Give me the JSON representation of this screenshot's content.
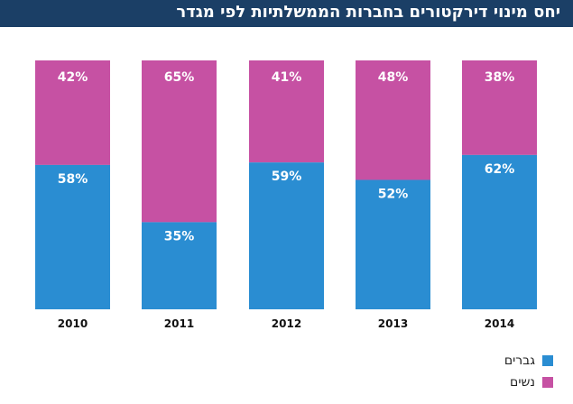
{
  "title": "יחס מינוי דירקטורים בחברות הממשלתיות לפי מגדר",
  "colors": {
    "header_bg": "#1b3f66",
    "men": "#2a8dd2",
    "women": "#c651a3"
  },
  "legend": {
    "men": "גברים",
    "women": "נשים"
  },
  "chart_data": {
    "type": "bar",
    "stacked": true,
    "percent_stacked": true,
    "categories": [
      "2010",
      "2011",
      "2012",
      "2013",
      "2014"
    ],
    "series": [
      {
        "name": "גברים",
        "values": [
          58,
          35,
          59,
          52,
          62
        ],
        "labels": [
          "58%",
          "35%",
          "59%",
          "52%",
          "62%"
        ]
      },
      {
        "name": "נשים",
        "values": [
          42,
          65,
          41,
          48,
          38
        ],
        "labels": [
          "42%",
          "65%",
          "41%",
          "48%",
          "38%"
        ]
      }
    ],
    "ylim": [
      0,
      100
    ],
    "grid": false,
    "legend_position": "bottom-right"
  }
}
